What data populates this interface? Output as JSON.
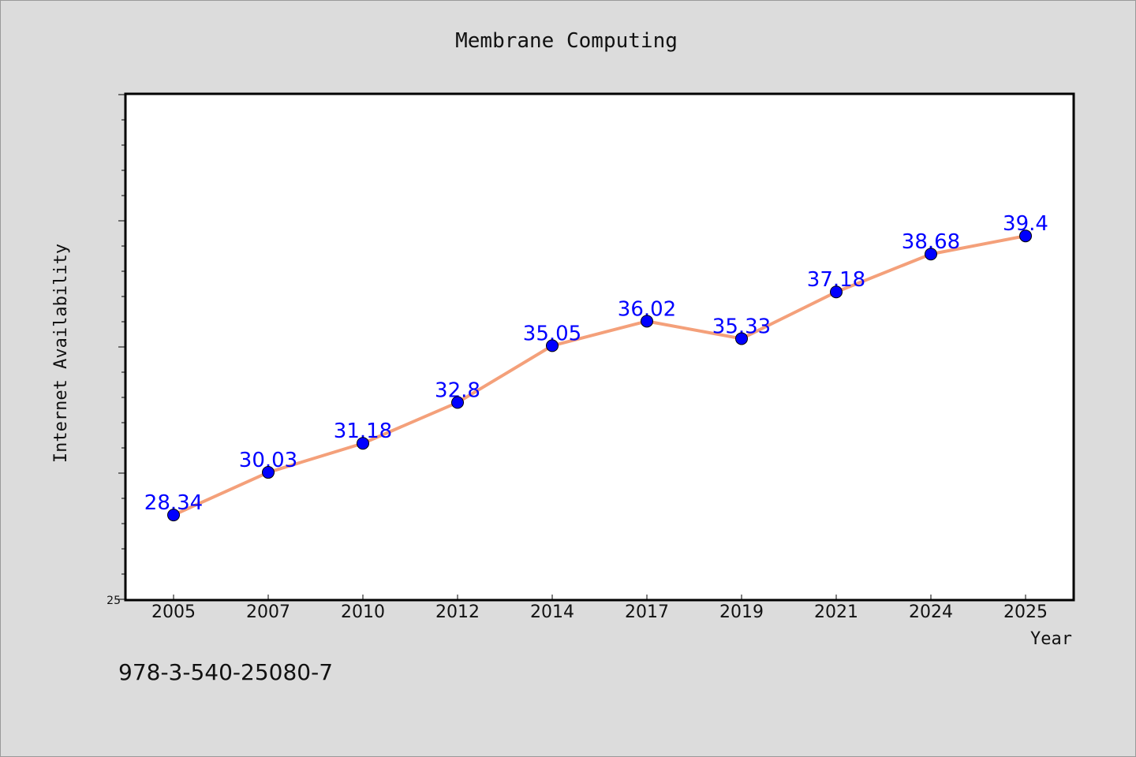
{
  "chart_data": {
    "type": "line",
    "title": "Membrane Computing",
    "xlabel": "Year",
    "ylabel": "Internet Availability",
    "categories": [
      "2005",
      "2007",
      "2010",
      "2012",
      "2014",
      "2017",
      "2019",
      "2021",
      "2024",
      "2025"
    ],
    "series": [
      {
        "values": [
          28.34,
          30.03,
          31.18,
          32.8,
          35.05,
          36.02,
          35.33,
          37.18,
          38.68,
          39.4
        ]
      }
    ],
    "data_labels": [
      "28.34",
      "30.03",
      "31.18",
      "32.8",
      "35.05",
      "36.02",
      "35.33",
      "37.18",
      "38.68",
      "39.4"
    ],
    "ylim": [
      25,
      45
    ],
    "y_tick_labels": [
      "25"
    ],
    "grid": false,
    "line_color": "#f4a07a",
    "marker_color": "#0000ff",
    "label_color": "#0000ff",
    "plot_background": "#ffffff",
    "page_background": "#dcdcdc"
  },
  "footer": {
    "isbn": "978-3-540-25080-7"
  }
}
